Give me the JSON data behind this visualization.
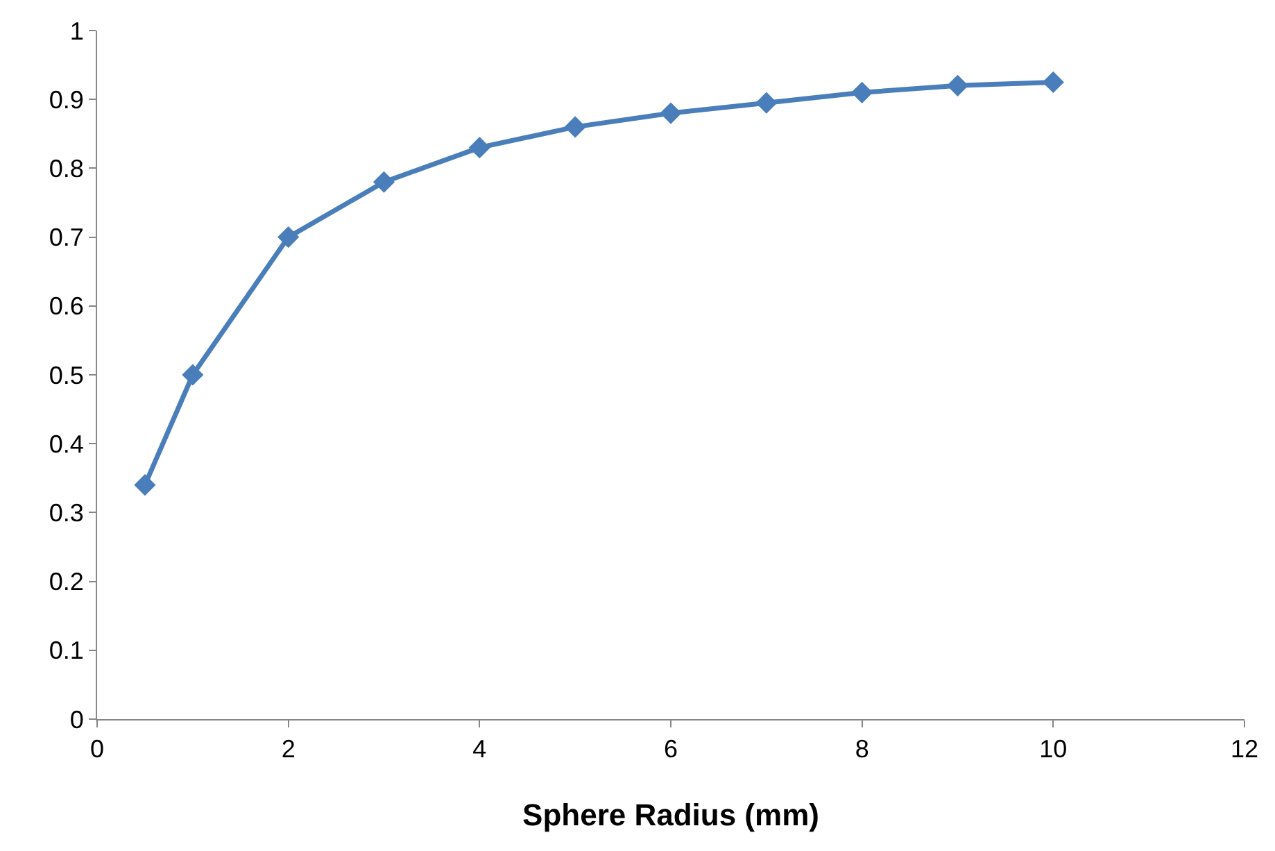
{
  "chart_data": {
    "type": "line",
    "xlabel": "Sphere Radius (mm)",
    "x": [
      0.5,
      1,
      2,
      3,
      4,
      5,
      6,
      7,
      8,
      9,
      10
    ],
    "series": [
      {
        "color": "#4a7ebb",
        "values": [
          0.34,
          0.5,
          0.7,
          0.78,
          0.83,
          0.86,
          0.88,
          0.895,
          0.91,
          0.92,
          0.925
        ]
      }
    ],
    "xlim": [
      0,
      12
    ],
    "xticks": [
      0,
      2,
      4,
      6,
      8,
      10,
      12
    ],
    "ylim": [
      0,
      1
    ],
    "yticks": [
      0,
      0.1,
      0.2,
      0.3,
      0.4,
      0.5,
      0.6,
      0.7,
      0.8,
      0.9,
      1
    ],
    "marker": "diamond",
    "line_style": "solid"
  }
}
